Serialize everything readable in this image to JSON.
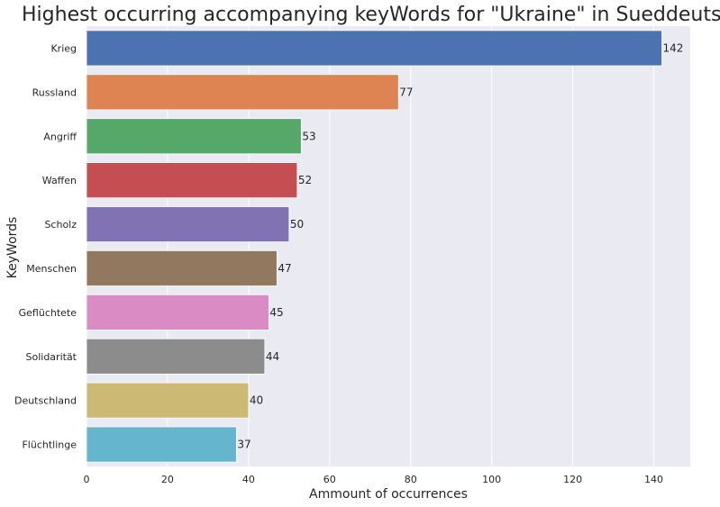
{
  "chart_data": {
    "type": "bar",
    "orientation": "horizontal",
    "title": "Highest occurring accompanying keyWords for \"Ukraine\" in Sueddeutsche",
    "xlabel": "Ammount of occurrences",
    "ylabel": "KeyWords",
    "categories": [
      "Krieg",
      "Russland",
      "Angriff",
      "Waffen",
      "Scholz",
      "Menschen",
      "Geflüchtete",
      "Solidarität",
      "Deutschland",
      "Flüchtlinge"
    ],
    "values": [
      142,
      77,
      53,
      52,
      50,
      47,
      45,
      44,
      40,
      37
    ],
    "data_labels": [
      "142",
      "77",
      "53",
      "52",
      "50",
      "47",
      "45",
      "44",
      "40",
      "37"
    ],
    "colors": [
      "#4c72b0",
      "#dd8452",
      "#55a868",
      "#c44e52",
      "#8172b3",
      "#937860",
      "#da8bc3",
      "#8c8c8c",
      "#ccb974",
      "#64b5cd"
    ],
    "xlim": [
      0,
      149
    ],
    "xticks": [
      0,
      20,
      40,
      60,
      80,
      100,
      120,
      140
    ],
    "xtick_labels": [
      "0",
      "20",
      "40",
      "60",
      "80",
      "100",
      "120",
      "140"
    ],
    "grid": true,
    "background": "#eaeaf2"
  }
}
